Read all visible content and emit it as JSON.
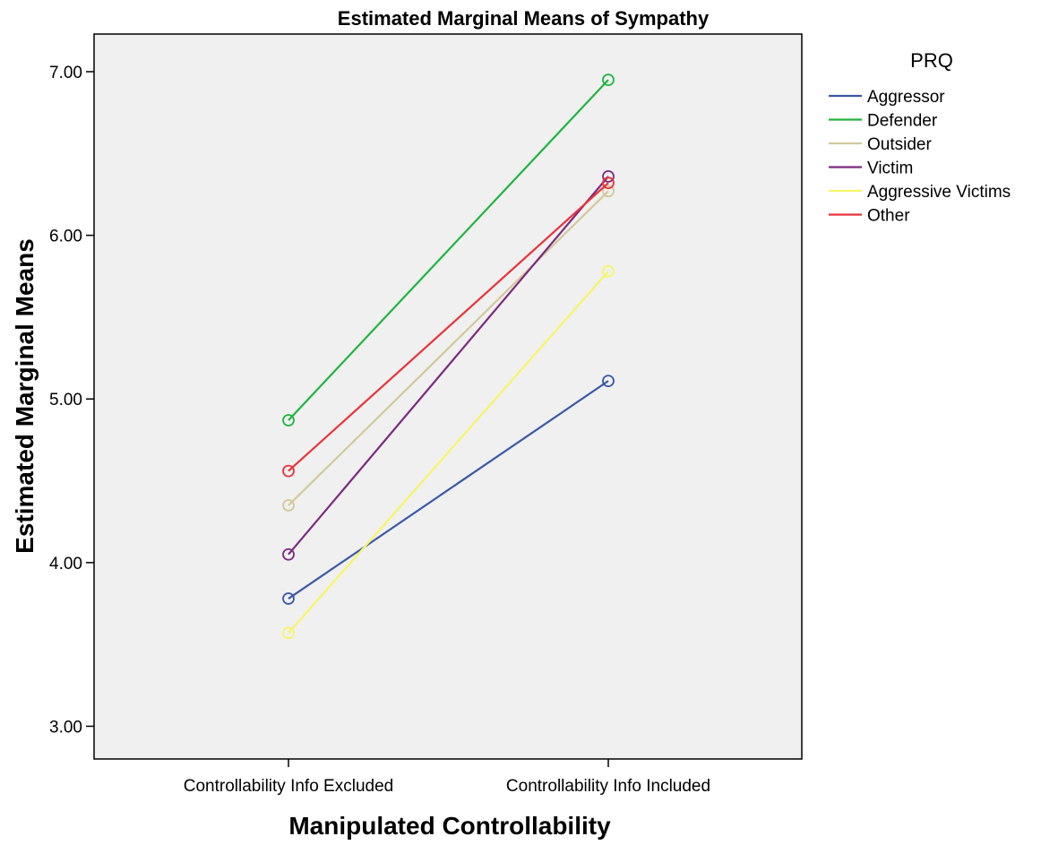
{
  "chart_data": {
    "type": "line",
    "title": "Estimated Marginal Means of Sympathy",
    "xlabel": "Manipulated Controllability",
    "ylabel": "Estimated Marginal Means",
    "categories": [
      "Controllability Info Excluded",
      "Controllability Info Included"
    ],
    "ylim": [
      2.8,
      7.23
    ],
    "yticks": [
      "3.00",
      "4.00",
      "5.00",
      "6.00",
      "7.00"
    ],
    "grid": false,
    "legend": {
      "title": "PRQ",
      "position": "right"
    },
    "series": [
      {
        "name": "Aggressor",
        "color": "#3a57a8",
        "values": [
          3.78,
          5.11
        ]
      },
      {
        "name": "Defender",
        "color": "#21b43f",
        "values": [
          4.87,
          6.95
        ]
      },
      {
        "name": "Outsider",
        "color": "#d2c99a",
        "values": [
          4.35,
          6.27
        ]
      },
      {
        "name": "Victim",
        "color": "#7b2a7f",
        "values": [
          4.05,
          6.36
        ]
      },
      {
        "name": "Aggressive Victims",
        "color": "#f5f566",
        "values": [
          3.57,
          5.78
        ]
      },
      {
        "name": "Other",
        "color": "#e8333a",
        "values": [
          4.56,
          6.32
        ]
      }
    ],
    "plot_background": "#f0f0f0"
  }
}
